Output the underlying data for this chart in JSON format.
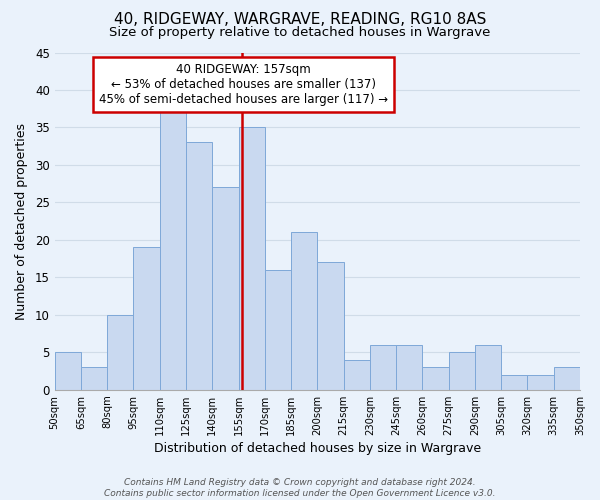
{
  "title": "40, RIDGEWAY, WARGRAVE, READING, RG10 8AS",
  "subtitle": "Size of property relative to detached houses in Wargrave",
  "xlabel": "Distribution of detached houses by size in Wargrave",
  "ylabel": "Number of detached properties",
  "footer_line1": "Contains HM Land Registry data © Crown copyright and database right 2024.",
  "footer_line2": "Contains public sector information licensed under the Open Government Licence v3.0.",
  "annotation_line1": "40 RIDGEWAY: 157sqm",
  "annotation_line2": "← 53% of detached houses are smaller (137)",
  "annotation_line3": "45% of semi-detached houses are larger (117) →",
  "bar_edges": [
    50,
    65,
    80,
    95,
    110,
    125,
    140,
    155,
    170,
    185,
    200,
    215,
    230,
    245,
    260,
    275,
    290,
    305,
    320,
    335,
    350
  ],
  "bar_heights": [
    5,
    3,
    10,
    19,
    37,
    33,
    27,
    35,
    16,
    21,
    17,
    4,
    6,
    6,
    3,
    5,
    6,
    2,
    2,
    3
  ],
  "bar_color": "#c9d9f0",
  "bar_edgecolor": "#7ea8d8",
  "vline_x": 157,
  "vline_color": "#cc0000",
  "annotation_box_edgecolor": "#cc0000",
  "annotation_box_facecolor": "#ffffff",
  "ylim": [
    0,
    45
  ],
  "xlim": [
    50,
    350
  ],
  "tick_labels": [
    "50sqm",
    "65sqm",
    "80sqm",
    "95sqm",
    "110sqm",
    "125sqm",
    "140sqm",
    "155sqm",
    "170sqm",
    "185sqm",
    "200sqm",
    "215sqm",
    "230sqm",
    "245sqm",
    "260sqm",
    "275sqm",
    "290sqm",
    "305sqm",
    "320sqm",
    "335sqm",
    "350sqm"
  ],
  "grid_color": "#d0dce8",
  "background_color": "#eaf2fb",
  "yticks": [
    0,
    5,
    10,
    15,
    20,
    25,
    30,
    35,
    40,
    45
  ]
}
